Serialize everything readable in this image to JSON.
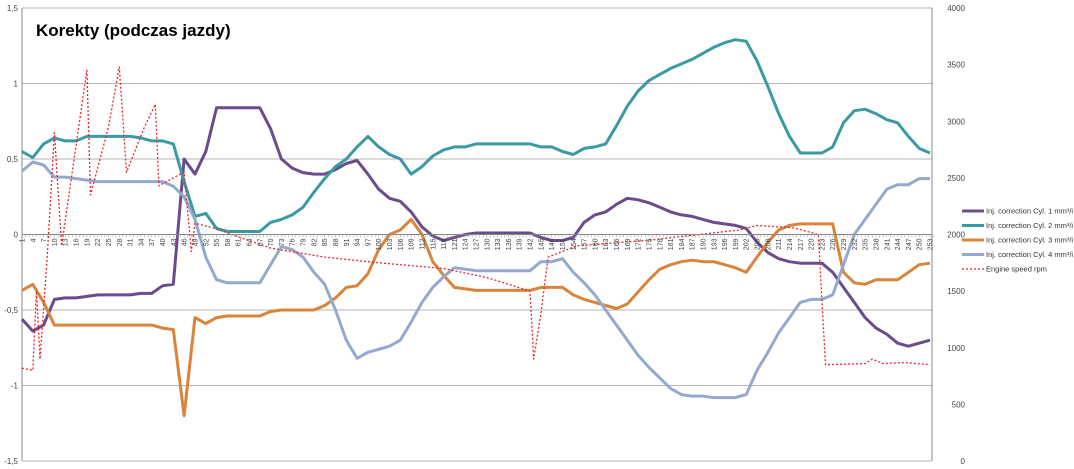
{
  "chart_data": {
    "type": "line",
    "title": "Korekty (podczas jazdy)",
    "xlabel": "",
    "ylabel": "",
    "ylim": [
      -1.5,
      1.5
    ],
    "y_ticks": [
      "1,5",
      "1",
      "0,5",
      "0",
      "-0,5",
      "-1",
      "-1,5"
    ],
    "y2lim": [
      0,
      4000
    ],
    "y2_ticks": [
      "4000",
      "3500",
      "3000",
      "2500",
      "2000",
      "1500",
      "1000",
      "500",
      "0"
    ],
    "grid": true,
    "legend_position": "right",
    "x": [
      1,
      4,
      7,
      10,
      13,
      16,
      19,
      22,
      25,
      28,
      31,
      34,
      37,
      40,
      43,
      46,
      49,
      52,
      55,
      58,
      61,
      64,
      67,
      70,
      73,
      76,
      79,
      82,
      85,
      88,
      91,
      94,
      97,
      100,
      103,
      106,
      109,
      112,
      115,
      118,
      121,
      124,
      127,
      130,
      133,
      136,
      139,
      142,
      145,
      148,
      151,
      154,
      157,
      160,
      163,
      166,
      169,
      172,
      175,
      178,
      181,
      184,
      187,
      190,
      193,
      196,
      199,
      202,
      205,
      208,
      211,
      214,
      217,
      220,
      223,
      226,
      229,
      232,
      235,
      238,
      241,
      244,
      247,
      250,
      253
    ],
    "series": [
      {
        "name": "Inj. correction Cyl. 1 mm³/i",
        "color": "#6a4c8c",
        "axis": "left",
        "values": [
          -0.56,
          -0.64,
          -0.6,
          -0.43,
          -0.42,
          -0.42,
          -0.41,
          -0.4,
          -0.4,
          -0.4,
          -0.4,
          -0.39,
          -0.39,
          -0.34,
          -0.33,
          0.5,
          0.4,
          0.55,
          0.84,
          0.84,
          0.84,
          0.84,
          0.84,
          0.7,
          0.5,
          0.44,
          0.41,
          0.4,
          0.4,
          0.43,
          0.47,
          0.49,
          0.4,
          0.3,
          0.24,
          0.22,
          0.15,
          0.05,
          -0.01,
          -0.04,
          -0.02,
          0,
          0.01,
          0.01,
          0.01,
          0.01,
          0.01,
          0.01,
          -0.02,
          -0.04,
          -0.04,
          -0.02,
          0.08,
          0.13,
          0.15,
          0.2,
          0.24,
          0.23,
          0.21,
          0.18,
          0.15,
          0.13,
          0.12,
          0.1,
          0.08,
          0.07,
          0.06,
          0.04,
          -0.05,
          -0.12,
          -0.16,
          -0.18,
          -0.19,
          -0.19,
          -0.19,
          -0.25,
          -0.35,
          -0.45,
          -0.55,
          -0.62,
          -0.66,
          -0.72,
          -0.74,
          -0.72,
          -0.7
        ]
      },
      {
        "name": "Inj. correction Cyl. 2 mm³/i",
        "color": "#3a9aa3",
        "axis": "left",
        "values": [
          0.55,
          0.51,
          0.6,
          0.64,
          0.62,
          0.62,
          0.65,
          0.65,
          0.65,
          0.65,
          0.65,
          0.64,
          0.62,
          0.62,
          0.6,
          0.35,
          0.12,
          0.14,
          0.04,
          0.02,
          0.02,
          0.02,
          0.02,
          0.08,
          0.1,
          0.13,
          0.18,
          0.28,
          0.37,
          0.45,
          0.5,
          0.58,
          0.65,
          0.58,
          0.53,
          0.5,
          0.4,
          0.45,
          0.52,
          0.56,
          0.58,
          0.58,
          0.6,
          0.6,
          0.6,
          0.6,
          0.6,
          0.6,
          0.58,
          0.58,
          0.55,
          0.53,
          0.57,
          0.58,
          0.6,
          0.72,
          0.85,
          0.95,
          1.02,
          1.06,
          1.1,
          1.13,
          1.16,
          1.2,
          1.24,
          1.27,
          1.29,
          1.28,
          1.15,
          0.98,
          0.8,
          0.65,
          0.54,
          0.54,
          0.54,
          0.58,
          0.74,
          0.82,
          0.83,
          0.8,
          0.76,
          0.74,
          0.65,
          0.57,
          0.54
        ]
      },
      {
        "name": "Inj. correction Cyl. 3 mm³/i",
        "color": "#d9843a",
        "axis": "left",
        "values": [
          -0.37,
          -0.33,
          -0.45,
          -0.6,
          -0.6,
          -0.6,
          -0.6,
          -0.6,
          -0.6,
          -0.6,
          -0.6,
          -0.6,
          -0.6,
          -0.62,
          -0.63,
          -1.2,
          -0.55,
          -0.59,
          -0.55,
          -0.54,
          -0.54,
          -0.54,
          -0.54,
          -0.51,
          -0.5,
          -0.5,
          -0.5,
          -0.5,
          -0.47,
          -0.42,
          -0.35,
          -0.34,
          -0.26,
          -0.1,
          0,
          0.03,
          0.1,
          0,
          -0.18,
          -0.27,
          -0.35,
          -0.36,
          -0.37,
          -0.37,
          -0.37,
          -0.37,
          -0.37,
          -0.37,
          -0.35,
          -0.35,
          -0.35,
          -0.4,
          -0.43,
          -0.45,
          -0.47,
          -0.49,
          -0.46,
          -0.38,
          -0.3,
          -0.23,
          -0.2,
          -0.18,
          -0.17,
          -0.18,
          -0.18,
          -0.2,
          -0.22,
          -0.25,
          -0.15,
          -0.05,
          0.03,
          0.06,
          0.07,
          0.07,
          0.07,
          0.07,
          -0.25,
          -0.32,
          -0.33,
          -0.3,
          -0.3,
          -0.3,
          -0.25,
          -0.2,
          -0.19
        ]
      },
      {
        "name": "Inj. correction Cyl. 4 mm³/i",
        "color": "#93a9cf",
        "axis": "left",
        "values": [
          0.42,
          0.48,
          0.46,
          0.38,
          0.38,
          0.37,
          0.36,
          0.35,
          0.35,
          0.35,
          0.35,
          0.35,
          0.35,
          0.35,
          0.32,
          0.25,
          0.1,
          -0.15,
          -0.3,
          -0.32,
          -0.32,
          -0.32,
          -0.32,
          -0.2,
          -0.08,
          -0.1,
          -0.15,
          -0.25,
          -0.33,
          -0.5,
          -0.7,
          -0.82,
          -0.78,
          -0.76,
          -0.74,
          -0.7,
          -0.58,
          -0.45,
          -0.35,
          -0.28,
          -0.22,
          -0.23,
          -0.24,
          -0.24,
          -0.24,
          -0.24,
          -0.24,
          -0.24,
          -0.18,
          -0.18,
          -0.16,
          -0.25,
          -0.32,
          -0.4,
          -0.5,
          -0.6,
          -0.7,
          -0.8,
          -0.88,
          -0.95,
          -1.02,
          -1.06,
          -1.07,
          -1.07,
          -1.08,
          -1.08,
          -1.08,
          -1.06,
          -0.9,
          -0.78,
          -0.65,
          -0.55,
          -0.45,
          -0.43,
          -0.43,
          -0.4,
          -0.2,
          0,
          0.1,
          0.2,
          0.3,
          0.33,
          0.33,
          0.37,
          0.37
        ]
      },
      {
        "name": "Engine speed rpm",
        "color": "#e8262a",
        "axis": "right",
        "dashed": true,
        "x": [
          1,
          4,
          5,
          6,
          8,
          10,
          12,
          19,
          20,
          25,
          28,
          30,
          35,
          38,
          39,
          43,
          46,
          48,
          49,
          55,
          61,
          70,
          85,
          100,
          118,
          130,
          142,
          143,
          145,
          147,
          155,
          175,
          200,
          205,
          215,
          222,
          224,
          235,
          237,
          240,
          246,
          253
        ],
        "values": [
          820,
          800,
          1500,
          900,
          1800,
          2900,
          1900,
          3450,
          2350,
          2950,
          3480,
          2550,
          2950,
          3150,
          2430,
          2500,
          2550,
          1850,
          2100,
          2050,
          1980,
          1880,
          1800,
          1750,
          1700,
          1620,
          1500,
          900,
          1300,
          1800,
          1900,
          1950,
          2040,
          2080,
          2060,
          2000,
          850,
          860,
          900,
          860,
          870,
          850
        ]
      }
    ]
  }
}
